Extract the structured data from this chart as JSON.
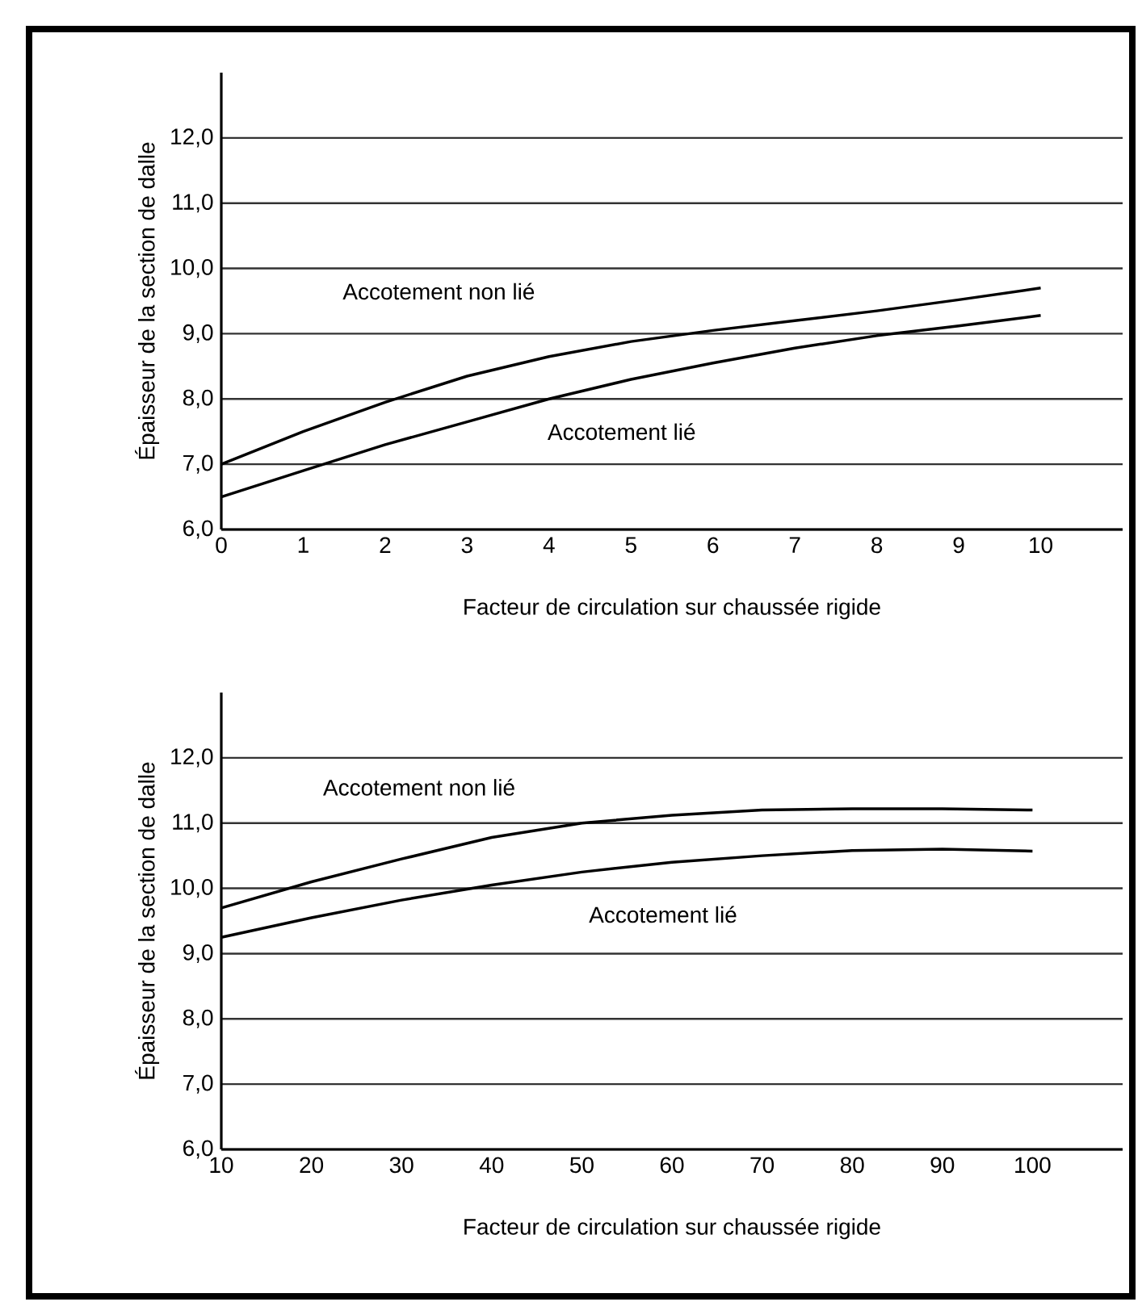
{
  "chart_data": [
    {
      "type": "line",
      "xlabel": "Facteur de circulation sur chaussée rigide",
      "ylabel": "Épaisseur de la section de dalle",
      "x": [
        0,
        1,
        2,
        3,
        4,
        5,
        6,
        7,
        8,
        9,
        10
      ],
      "series": [
        {
          "name": "Accotement non lié",
          "color": "#000000",
          "values": [
            7.0,
            7.5,
            7.95,
            8.35,
            8.65,
            8.88,
            9.05,
            9.2,
            9.35,
            9.52,
            9.7
          ]
        },
        {
          "name": "Accotement lié",
          "color": "#000000",
          "values": [
            6.5,
            6.9,
            7.3,
            7.65,
            8.0,
            8.3,
            8.55,
            8.78,
            8.97,
            9.12,
            9.28
          ]
        }
      ],
      "xlim": [
        0,
        11
      ],
      "xticks": [
        0,
        1,
        2,
        3,
        4,
        5,
        6,
        7,
        8,
        9,
        10
      ],
      "ylim": [
        6,
        13
      ],
      "yticks": [
        {
          "value": 6,
          "label": "6,0"
        },
        {
          "value": 7,
          "label": "7,0"
        },
        {
          "value": 8,
          "label": "8,0"
        },
        {
          "value": 9,
          "label": "9,0"
        },
        {
          "value": 10,
          "label": "10,0"
        },
        {
          "value": 11,
          "label": "11,0"
        },
        {
          "value": 12,
          "label": "12,0"
        }
      ],
      "grid": "y"
    },
    {
      "type": "line",
      "xlabel": "Facteur de circulation sur chaussée rigide",
      "ylabel": "Épaisseur de la section de dalle",
      "x": [
        10,
        20,
        30,
        40,
        50,
        60,
        70,
        80,
        90,
        100
      ],
      "series": [
        {
          "name": "Accotement non lié",
          "color": "#000000",
          "values": [
            9.7,
            10.1,
            10.45,
            10.78,
            11.0,
            11.12,
            11.2,
            11.22,
            11.22,
            11.2
          ]
        },
        {
          "name": "Accotement lié",
          "color": "#000000",
          "values": [
            9.25,
            9.55,
            9.82,
            10.05,
            10.25,
            10.4,
            10.5,
            10.58,
            10.6,
            10.57
          ]
        }
      ],
      "xlim": [
        10,
        110
      ],
      "xticks": [
        10,
        20,
        30,
        40,
        50,
        60,
        70,
        80,
        90,
        100
      ],
      "ylim": [
        6,
        13
      ],
      "yticks": [
        {
          "value": 6,
          "label": "6,0"
        },
        {
          "value": 7,
          "label": "7,0"
        },
        {
          "value": 8,
          "label": "8,0"
        },
        {
          "value": 9,
          "label": "9,0"
        },
        {
          "value": 10,
          "label": "10,0"
        },
        {
          "value": 11,
          "label": "11,0"
        },
        {
          "value": 12,
          "label": "12,0"
        }
      ],
      "grid": "y"
    }
  ]
}
